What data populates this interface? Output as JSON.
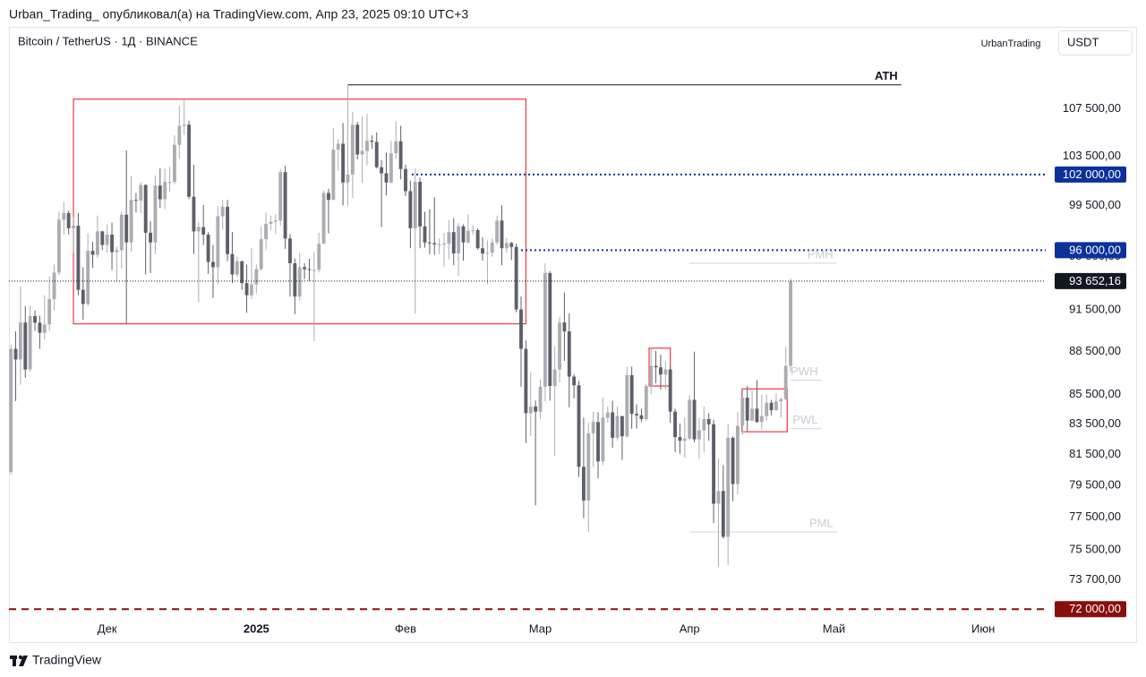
{
  "header": {
    "attribution": "Urban_Trading_ опубликовал(а) на TradingView.com, Апр 23, 2025 09:10 UTC+3",
    "user": "UrbanTrading",
    "currency": "USDT",
    "footer": "TradingView"
  },
  "chart_data": {
    "type": "candlestick",
    "title": "Bitcoin / TetherUS · 1Д · BINANCE",
    "log": true,
    "up_color": "#abadb3",
    "down_color": "#5d606b",
    "xlim": [
      -0.4,
      215
    ],
    "ylim": [
      71500,
      114400
    ],
    "xticks": [
      {
        "value": 20,
        "label": "Дек"
      },
      {
        "value": 51,
        "label": "2025"
      },
      {
        "value": 82,
        "label": "Фев"
      },
      {
        "value": 110,
        "label": "Мар"
      },
      {
        "value": 141,
        "label": "Апр"
      },
      {
        "value": 171,
        "label": "Май"
      },
      {
        "value": 202,
        "label": "Июн"
      }
    ],
    "yticks": [
      {
        "value": 107500,
        "label": "107 500,00"
      },
      {
        "value": 103500,
        "label": "103 500,00"
      },
      {
        "value": 99500,
        "label": "99 500,00"
      },
      {
        "value": 95500,
        "label": "95 500,00"
      },
      {
        "value": 91500,
        "label": "91 500,00"
      },
      {
        "value": 88500,
        "label": "88 500,00"
      },
      {
        "value": 85500,
        "label": "85 500,00"
      },
      {
        "value": 83500,
        "label": "83 500,00"
      },
      {
        "value": 81500,
        "label": "81 500,00"
      },
      {
        "value": 79500,
        "label": "79 500,00"
      },
      {
        "value": 77500,
        "label": "77 500,00"
      },
      {
        "value": 75500,
        "label": "75 500,00"
      },
      {
        "value": 73700,
        "label": "73 700,00"
      }
    ],
    "open": [
      80370,
      88700,
      87955,
      90590,
      87250,
      91060,
      90580,
      89850,
      90460,
      92310,
      94290,
      98380,
      98900,
      97700,
      97900,
      93000,
      91950,
      95950,
      95650,
      97460,
      96400,
      97200,
      95850,
      96000,
      98770,
      96600,
      99950,
      99900,
      101150,
      97350,
      96600,
      101100,
      100000,
      101400,
      101400,
      104450,
      106050,
      106150,
      100200,
      97450,
      97800,
      97200,
      95100,
      94700,
      98650,
      99400,
      95700,
      94150,
      95150,
      93500,
      92600,
      93400,
      94550,
      96850,
      98050,
      98200,
      98300,
      102200,
      96900,
      95000,
      92500,
      94700,
      94550,
      94500,
      94500,
      96500,
      100500,
      99950,
      104050,
      104550,
      101350,
      102000,
      106150,
      103650,
      103950,
      104800,
      104700,
      102600,
      102100,
      101350,
      103750,
      104750,
      102450,
      100650,
      97700,
      101400,
      97850,
      96600,
      96550,
      96450,
      96450,
      96500,
      97400,
      95750,
      97850,
      96600,
      97500,
      97550,
      96150,
      95750,
      95800,
      96600,
      98300,
      96150,
      96550,
      96250,
      91550,
      88700,
      84250,
      84700,
      84350,
      86050,
      94250,
      86100,
      87250,
      90600,
      89950,
      86750,
      86150,
      80700,
      78550,
      82900,
      83650,
      81050,
      83950,
      84300,
      82600,
      84050,
      82700,
      86850,
      84200,
      84100,
      83850,
      86100,
      87500,
      87400,
      86900,
      87250,
      84350,
      82650,
      82400,
      82550,
      85150,
      82500,
      83100,
      83850,
      83500,
      78350,
      79150,
      76300,
      82600,
      79600,
      83400,
      85300,
      83750,
      84550,
      83650,
      84050,
      84950,
      84450,
      85050,
      85200,
      87500
    ],
    "high": [
      89000,
      89950,
      93265,
      91800,
      91850,
      91470,
      91100,
      92600,
      94000,
      94900,
      99000,
      99800,
      99100,
      98600,
      98900,
      94700,
      97300,
      96650,
      98700,
      97500,
      98000,
      98150,
      96300,
      99000,
      104000,
      101900,
      100500,
      101350,
      101200,
      98250,
      101900,
      102500,
      102500,
      102650,
      105250,
      107800,
      108350,
      106500,
      102800,
      98200,
      99550,
      97400,
      96400,
      99450,
      99950,
      99950,
      97400,
      95500,
      95200,
      94900,
      96150,
      94900,
      97800,
      98950,
      98700,
      98800,
      102450,
      102700,
      97250,
      95350,
      95800,
      95000,
      95350,
      95850,
      97350,
      100700,
      100850,
      105850,
      104950,
      106300,
      109600,
      107250,
      106400,
      106850,
      107100,
      105250,
      105500,
      103200,
      103800,
      104800,
      106450,
      106050,
      102800,
      101500,
      102500,
      101750,
      99000,
      99200,
      100150,
      96900,
      97350,
      98350,
      98500,
      98100,
      98000,
      98800,
      97950,
      97700,
      97000,
      96750,
      96900,
      98700,
      99500,
      96950,
      96650,
      96500,
      92500,
      89300,
      87050,
      85100,
      86550,
      95000,
      94400,
      88900,
      91000,
      92800,
      91250,
      86900,
      86450,
      83950,
      83600,
      84350,
      84300,
      85300,
      84700,
      85100,
      84700,
      84050,
      87450,
      87450,
      84850,
      84550,
      86250,
      88750,
      88550,
      88300,
      87800,
      87500,
      84550,
      83550,
      83950,
      85500,
      88500,
      83950,
      84700,
      84250,
      83800,
      81250,
      80800,
      83550,
      82700,
      84300,
      85900,
      86100,
      85800,
      86500,
      85500,
      85500,
      85150,
      85600,
      85300,
      88850,
      93850
    ],
    "low": [
      80200,
      85070,
      86200,
      86670,
      87100,
      90000,
      88700,
      89370,
      90000,
      91500,
      94100,
      97200,
      97200,
      95800,
      92600,
      90800,
      91800,
      94650,
      95400,
      96000,
      95800,
      94500,
      93600,
      94600,
      90500,
      95900,
      98950,
      98900,
      94150,
      94250,
      95700,
      99300,
      99200,
      100600,
      101200,
      103300,
      105300,
      100000,
      95700,
      92100,
      96400,
      94200,
      92400,
      93400,
      97600,
      95150,
      93500,
      94000,
      93000,
      91300,
      92300,
      92750,
      94450,
      96000,
      97550,
      97250,
      97900,
      96100,
      92500,
      91200,
      92200,
      93800,
      93650,
      89250,
      94300,
      96500,
      97300,
      99950,
      102300,
      99500,
      99500,
      100100,
      103250,
      101300,
      102750,
      104100,
      102500,
      97800,
      100300,
      101300,
      103300,
      101600,
      100250,
      96150,
      91250,
      96150,
      96200,
      95700,
      95650,
      95700,
      94750,
      95300,
      94850,
      94050,
      95200,
      96500,
      97200,
      96050,
      95200,
      93400,
      95500,
      96400,
      94850,
      95800,
      95250,
      91350,
      86050,
      82250,
      82700,
      78250,
      83850,
      85050,
      85100,
      81400,
      86350,
      87850,
      84650,
      85250,
      80050,
      77450,
      76600,
      80700,
      79950,
      80800,
      83600,
      81950,
      82400,
      81150,
      82600,
      83200,
      83200,
      83650,
      83700,
      85550,
      86300,
      85850,
      85850,
      83600,
      81650,
      81550,
      81300,
      82450,
      82300,
      81200,
      81650,
      82400,
      77150,
      74500,
      76200,
      74600,
      78500,
      78950,
      82800,
      83000,
      83700,
      83600,
      83150,
      83750,
      84100,
      84400,
      83950,
      85150,
      87100
    ],
    "close": [
      88700,
      87955,
      90590,
      87250,
      91060,
      90580,
      89850,
      90460,
      92310,
      94290,
      98380,
      98900,
      97700,
      97900,
      93000,
      91950,
      95950,
      95650,
      97460,
      96400,
      97200,
      95850,
      96000,
      98770,
      96600,
      99950,
      99900,
      101150,
      97350,
      96600,
      101100,
      100000,
      101400,
      101400,
      104450,
      106050,
      106150,
      100200,
      97450,
      97800,
      97200,
      95100,
      94700,
      98650,
      99400,
      95700,
      94150,
      95150,
      93500,
      92600,
      93400,
      94550,
      96850,
      98050,
      98200,
      98300,
      102200,
      96900,
      95000,
      92500,
      94700,
      94550,
      94500,
      94500,
      96500,
      100500,
      99950,
      104050,
      104550,
      101350,
      102000,
      106150,
      103650,
      103950,
      104800,
      104700,
      102600,
      102100,
      101350,
      103750,
      104750,
      102450,
      100650,
      97700,
      101400,
      97850,
      96600,
      96550,
      96450,
      96450,
      96500,
      97400,
      95750,
      97850,
      96600,
      97500,
      97550,
      96150,
      95750,
      95800,
      96600,
      98300,
      96150,
      96550,
      96250,
      91550,
      88700,
      84250,
      84700,
      84350,
      86050,
      94250,
      86100,
      87250,
      90600,
      89950,
      86750,
      86150,
      80700,
      78550,
      82900,
      83650,
      81050,
      83950,
      84300,
      82600,
      84050,
      82700,
      86850,
      84200,
      84100,
      83850,
      86100,
      87500,
      87400,
      86900,
      87250,
      84350,
      82650,
      82400,
      82550,
      85150,
      82500,
      83100,
      83850,
      83500,
      78350,
      79150,
      76300,
      82600,
      79600,
      83400,
      85300,
      83750,
      84550,
      83650,
      84050,
      84950,
      84450,
      85050,
      85200,
      87500,
      93652.16
    ],
    "current_price": {
      "value": 93652.16,
      "label": "93 652,16",
      "color": "#131722"
    },
    "levels": [
      {
        "label": "ATH",
        "value": 109600,
        "from": 70,
        "to": 185,
        "color": "#131722",
        "style": "solid",
        "label_at": "end"
      },
      {
        "label": "102 000,00",
        "value": 102000,
        "from": 83.3,
        "color": "#0c3299",
        "style": "dotted",
        "label_at": "axis"
      },
      {
        "label": "96 000,00",
        "value": 96000,
        "from": 106,
        "color": "#0c3299",
        "style": "dotted",
        "label_at": "axis"
      },
      {
        "label": "72 000,00",
        "value": 72000,
        "color": "#880e0e",
        "style": "dashed",
        "label_at": "axis"
      },
      {
        "label": "PMH",
        "value": 95000,
        "from": 141,
        "to": 171.6,
        "color": "#d1d4dc",
        "style": "solid",
        "label_at": "end"
      },
      {
        "label": "PWH",
        "value": 86500,
        "from": 162,
        "to": 168.4,
        "color": "#d1d4dc",
        "style": "solid",
        "label_at": "end"
      },
      {
        "label": "PWL",
        "value": 83200,
        "from": 162,
        "to": 168.4,
        "color": "#d1d4dc",
        "style": "solid",
        "label_at": "end"
      },
      {
        "label": "PML",
        "value": 76600,
        "from": 141,
        "to": 171.6,
        "color": "#d1d4dc",
        "style": "solid",
        "label_at": "end"
      }
    ],
    "boxes": [
      {
        "x": [
          13,
          107
        ],
        "y": [
          90500,
          108350
        ],
        "color": "#f23645"
      },
      {
        "x": [
          132.6,
          137
        ],
        "y": [
          86100,
          88750
        ],
        "color": "#f23645"
      },
      {
        "x": [
          151.9,
          161.3
        ],
        "y": [
          83000,
          85900
        ],
        "color": "#f23645"
      }
    ]
  }
}
